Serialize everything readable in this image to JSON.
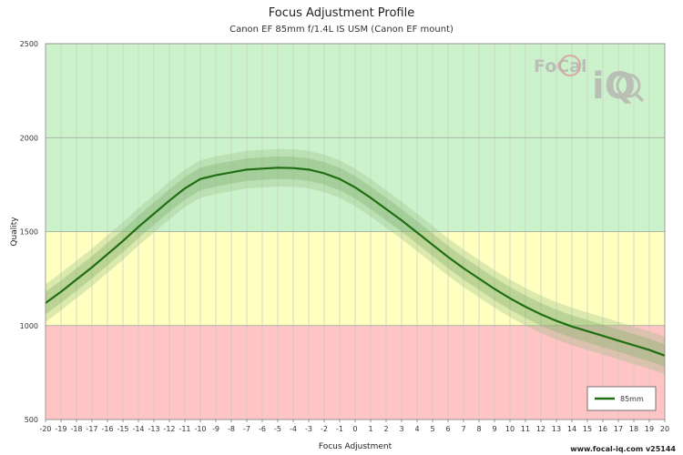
{
  "title": "Focus Adjustment Profile",
  "subtitle": "Canon EF 85mm f/1.4L IS USM (Canon EF mount)",
  "footer": "www.focal-iq.com  v25144",
  "logo": {
    "text_top": "FoCal",
    "text_bottom": "iQ"
  },
  "colors": {
    "band_green": "#ccf2cc",
    "band_yellow": "#ffffc0",
    "band_red": "#ffc4c4",
    "line": "#1f6e12",
    "ci_outer": "#9cbf88",
    "ci_inner": "#7fae6b"
  },
  "chart_data": {
    "type": "line",
    "title": "Focus Adjustment Profile",
    "subtitle": "Canon EF 85mm f/1.4L IS USM (Canon EF mount)",
    "xlabel": "Focus Adjustment",
    "ylabel": "Quality",
    "xlim": [
      -20,
      20
    ],
    "ylim": [
      500,
      2500
    ],
    "x_ticks": [
      -20,
      -19,
      -18,
      -17,
      -16,
      -15,
      -14,
      -13,
      -12,
      -11,
      -10,
      -9,
      -8,
      -7,
      -6,
      -5,
      -4,
      -3,
      -2,
      -1,
      0,
      1,
      2,
      3,
      4,
      5,
      6,
      7,
      8,
      9,
      10,
      11,
      12,
      13,
      14,
      15,
      16,
      17,
      18,
      19,
      20
    ],
    "y_ticks": [
      500,
      1000,
      1500,
      2000,
      2500
    ],
    "bands": [
      {
        "from": 500,
        "to": 1000,
        "color": "#ffc4c4"
      },
      {
        "from": 1000,
        "to": 1500,
        "color": "#ffffc0"
      },
      {
        "from": 1500,
        "to": 2500,
        "color": "#ccf2cc"
      }
    ],
    "grid": true,
    "legend_position": "bottom-right",
    "series": [
      {
        "name": "85mm",
        "x": [
          -20,
          -19,
          -18,
          -17,
          -16,
          -15,
          -14,
          -13,
          -12,
          -11,
          -10,
          -9,
          -8,
          -7,
          -6,
          -5,
          -4,
          -3,
          -2,
          -1,
          0,
          1,
          2,
          3,
          4,
          5,
          6,
          7,
          8,
          9,
          10,
          11,
          12,
          13,
          14,
          15,
          16,
          17,
          18,
          19,
          20
        ],
        "y": [
          1120,
          1180,
          1245,
          1310,
          1380,
          1450,
          1525,
          1595,
          1665,
          1730,
          1780,
          1800,
          1815,
          1830,
          1835,
          1840,
          1838,
          1830,
          1810,
          1780,
          1735,
          1680,
          1620,
          1560,
          1495,
          1430,
          1365,
          1305,
          1250,
          1195,
          1145,
          1100,
          1060,
          1025,
          995,
          970,
          945,
          920,
          895,
          870,
          840
        ],
        "ci_outer": 100,
        "ci_inner": 60
      }
    ]
  }
}
